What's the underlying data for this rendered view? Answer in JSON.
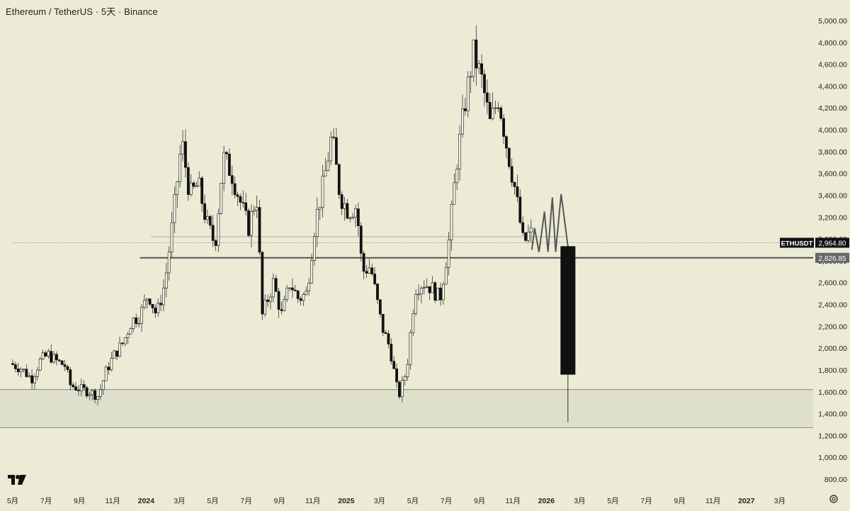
{
  "header": {
    "title": "Ethereum / TetherUS · 5天 · Binance"
  },
  "colors": {
    "background": "#ececd6",
    "candle": "#111111",
    "wick": "#333333",
    "zone_fill": "#dfe0cb",
    "support_line": "#555555",
    "projection_line": "#555555",
    "price_label_bg": "#111111",
    "price_label_alt_bg": "#666666",
    "axis_text": "#222222"
  },
  "icons": {
    "logo": "tradingview-logo-icon",
    "settings": "gear-icon"
  },
  "chart_data": {
    "type": "candlestick",
    "symbol": "ETHUSDT",
    "y_axis": {
      "position": "right",
      "min": 800,
      "max": 5000,
      "ticks": [
        "5,000.00",
        "4,800.00",
        "4,600.00",
        "4,400.00",
        "4,200.00",
        "4,000.00",
        "3,800.00",
        "3,600.00",
        "3,400.00",
        "3,200.00",
        "3,000.00",
        "2,800.00",
        "2,600.00",
        "2,400.00",
        "2,200.00",
        "2,000.00",
        "1,800.00",
        "1,600.00",
        "1,400.00",
        "1,200.00",
        "1,000.00",
        "800.00"
      ],
      "tick_values": [
        5000,
        4800,
        4600,
        4400,
        4200,
        4000,
        3800,
        3600,
        3400,
        3200,
        3000,
        2800,
        2600,
        2400,
        2200,
        2000,
        1800,
        1600,
        1400,
        1200,
        1000,
        800
      ]
    },
    "x_axis": {
      "start": "2023-05",
      "end": "2027-03",
      "labels": [
        {
          "t": "2023-05",
          "text": "5月"
        },
        {
          "t": "2023-07",
          "text": "7月"
        },
        {
          "t": "2023-09",
          "text": "9月"
        },
        {
          "t": "2023-11",
          "text": "11月"
        },
        {
          "t": "2024-01",
          "text": "2024"
        },
        {
          "t": "2024-03",
          "text": "3月"
        },
        {
          "t": "2024-05",
          "text": "5月"
        },
        {
          "t": "2024-07",
          "text": "7月"
        },
        {
          "t": "2024-09",
          "text": "9月"
        },
        {
          "t": "2024-11",
          "text": "11月"
        },
        {
          "t": "2025-01",
          "text": "2025"
        },
        {
          "t": "2025-03",
          "text": "3月"
        },
        {
          "t": "2025-05",
          "text": "5月"
        },
        {
          "t": "2025-07",
          "text": "7月"
        },
        {
          "t": "2025-09",
          "text": "9月"
        },
        {
          "t": "2025-11",
          "text": "11月"
        },
        {
          "t": "2026-01",
          "text": "2026"
        },
        {
          "t": "2026-03",
          "text": "3月"
        },
        {
          "t": "2026-05",
          "text": "5月"
        },
        {
          "t": "2026-07",
          "text": "7月"
        },
        {
          "t": "2026-09",
          "text": "9月"
        },
        {
          "t": "2026-11",
          "text": "11月"
        },
        {
          "t": "2027-01",
          "text": "2027"
        },
        {
          "t": "2027-03",
          "text": "3月"
        }
      ]
    },
    "price_path": [
      [
        "2023-05-01",
        1860
      ],
      [
        "2023-05-20",
        1820
      ],
      [
        "2023-06-10",
        1720
      ],
      [
        "2023-06-25",
        1880
      ],
      [
        "2023-07-10",
        1940
      ],
      [
        "2023-07-25",
        1880
      ],
      [
        "2023-08-10",
        1840
      ],
      [
        "2023-08-20",
        1660
      ],
      [
        "2023-09-10",
        1620
      ],
      [
        "2023-09-25",
        1600
      ],
      [
        "2023-10-10",
        1560
      ],
      [
        "2023-10-25",
        1800
      ],
      [
        "2023-11-10",
        1950
      ],
      [
        "2023-11-25",
        2050
      ],
      [
        "2023-12-10",
        2250
      ],
      [
        "2023-12-25",
        2300
      ],
      [
        "2024-01-10",
        2500
      ],
      [
        "2024-01-25",
        2300
      ],
      [
        "2024-02-10",
        2600
      ],
      [
        "2024-02-25",
        3200
      ],
      [
        "2024-03-10",
        3900
      ],
      [
        "2024-03-25",
        3400
      ],
      [
        "2024-04-10",
        3500
      ],
      [
        "2024-04-25",
        3150
      ],
      [
        "2024-05-10",
        2950
      ],
      [
        "2024-05-25",
        3750
      ],
      [
        "2024-06-10",
        3600
      ],
      [
        "2024-06-25",
        3350
      ],
      [
        "2024-07-10",
        3100
      ],
      [
        "2024-07-25",
        3400
      ],
      [
        "2024-08-05",
        2300
      ],
      [
        "2024-08-25",
        2600
      ],
      [
        "2024-09-10",
        2300
      ],
      [
        "2024-09-25",
        2600
      ],
      [
        "2024-10-10",
        2450
      ],
      [
        "2024-10-25",
        2500
      ],
      [
        "2024-11-10",
        3150
      ],
      [
        "2024-11-25",
        3500
      ],
      [
        "2024-12-10",
        3950
      ],
      [
        "2024-12-25",
        3400
      ],
      [
        "2025-01-10",
        3250
      ],
      [
        "2025-01-25",
        3300
      ],
      [
        "2025-02-05",
        2700
      ],
      [
        "2025-02-20",
        2750
      ],
      [
        "2025-03-10",
        2200
      ],
      [
        "2025-03-25",
        2000
      ],
      [
        "2025-04-10",
        1550
      ],
      [
        "2025-04-25",
        1800
      ],
      [
        "2025-05-10",
        2550
      ],
      [
        "2025-05-25",
        2600
      ],
      [
        "2025-06-10",
        2550
      ],
      [
        "2025-06-25",
        2450
      ],
      [
        "2025-07-10",
        2950
      ],
      [
        "2025-07-25",
        3700
      ],
      [
        "2025-08-10",
        4250
      ],
      [
        "2025-08-25",
        4700
      ],
      [
        "2025-09-10",
        4450
      ],
      [
        "2025-09-25",
        4050
      ],
      [
        "2025-10-10",
        4300
      ],
      [
        "2025-10-25",
        3850
      ],
      [
        "2025-11-10",
        3450
      ],
      [
        "2025-11-25",
        2950
      ],
      [
        "2025-12-05",
        3050
      ]
    ],
    "zone": {
      "top": 1620,
      "bottom": 1270
    },
    "horizontal_lines": [
      {
        "value": 2826.85,
        "from": "2023-12-20",
        "label": "2,826.85",
        "style": "solid-thick"
      },
      {
        "value": 2964.8,
        "from": "2023-05-01",
        "label": "2,964.80",
        "style": "dotted"
      },
      {
        "value": 3020,
        "from": "2024-01-10",
        "to": "2026-02-05",
        "label": "",
        "style": "thin"
      }
    ],
    "projection": [
      [
        "2025-12-05",
        2900
      ],
      [
        "2025-12-10",
        3100
      ],
      [
        "2025-12-18",
        2880
      ],
      [
        "2025-12-28",
        3250
      ],
      [
        "2026-01-04",
        2880
      ],
      [
        "2026-01-12",
        3380
      ],
      [
        "2026-01-18",
        2880
      ],
      [
        "2026-01-28",
        3410
      ],
      [
        "2026-02-10",
        2930
      ]
    ],
    "big_candle": {
      "t": "2026-02-10",
      "open": 2930,
      "close": 1760,
      "high": 2930,
      "low": 1320
    },
    "price_labels": [
      {
        "label": "ETHUSDT",
        "value": "2,964.80",
        "y": 2964.8
      },
      {
        "label": "",
        "value": "2,826.85",
        "y": 2826.85
      }
    ]
  }
}
